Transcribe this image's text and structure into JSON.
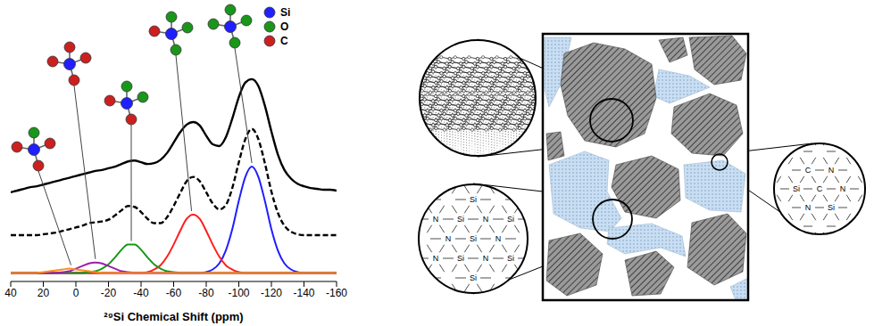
{
  "chart_data": {
    "type": "line",
    "x_label": "²⁹Si Chemical Shift (ppm)",
    "x": [
      40,
      36,
      32,
      28,
      24,
      20,
      16,
      12,
      8,
      4,
      0,
      -4,
      -8,
      -12,
      -16,
      -20,
      -24,
      -28,
      -32,
      -36,
      -40,
      -44,
      -48,
      -52,
      -56,
      -60,
      -64,
      -68,
      -72,
      -76,
      -80,
      -84,
      -88,
      -92,
      -96,
      -100,
      -104,
      -108,
      -112,
      -116,
      -120,
      -124,
      -128,
      -132,
      -136,
      -140,
      -144,
      -148,
      -152,
      -156,
      -160
    ],
    "xlim": [
      40,
      -160
    ],
    "xticks": [
      40,
      20,
      0,
      -20,
      -40,
      -60,
      -80,
      -100,
      -120,
      -140,
      -160
    ],
    "ylim": [
      -0.1,
      3.1
    ],
    "tick_labels": "x",
    "series": [
      {
        "color": "#000000",
        "line_style": "solid",
        "values": [
          0.94,
          0.96,
          0.98,
          1.0,
          1.01,
          1.03,
          1.05,
          1.07,
          1.09,
          1.11,
          1.13,
          1.15,
          1.17,
          1.19,
          1.2,
          1.22,
          1.24,
          1.27,
          1.3,
          1.31,
          1.29,
          1.27,
          1.28,
          1.32,
          1.4,
          1.52,
          1.64,
          1.73,
          1.76,
          1.72,
          1.6,
          1.5,
          1.48,
          1.58,
          1.8,
          2.05,
          2.22,
          2.26,
          2.18,
          1.95,
          1.65,
          1.38,
          1.2,
          1.1,
          1.04,
          1.01,
          0.99,
          0.98,
          0.97,
          0.97,
          0.96
        ]
      },
      {
        "color": "#000000",
        "line_style": "dashed",
        "values": [
          0.44,
          0.44,
          0.44,
          0.44,
          0.44,
          0.45,
          0.46,
          0.47,
          0.49,
          0.51,
          0.53,
          0.55,
          0.58,
          0.59,
          0.6,
          0.62,
          0.67,
          0.73,
          0.78,
          0.77,
          0.71,
          0.63,
          0.58,
          0.58,
          0.65,
          0.78,
          0.93,
          1.07,
          1.12,
          1.07,
          0.94,
          0.81,
          0.74,
          0.79,
          0.99,
          1.29,
          1.56,
          1.68,
          1.56,
          1.28,
          0.95,
          0.7,
          0.55,
          0.48,
          0.45,
          0.44,
          0.44,
          0.44,
          0.44,
          0.44,
          0.44
        ]
      },
      {
        "color": "#1f1fff",
        "line_style": "solid",
        "values": [
          0,
          0,
          0,
          0,
          0,
          0,
          0,
          0,
          0,
          0,
          0,
          0,
          0,
          0,
          0,
          0,
          0,
          0,
          0,
          0,
          0,
          0,
          0,
          0,
          0,
          0,
          0,
          0,
          0,
          0,
          0.01,
          0.04,
          0.11,
          0.26,
          0.51,
          0.84,
          1.12,
          1.24,
          1.12,
          0.84,
          0.51,
          0.26,
          0.11,
          0.04,
          0.01,
          0,
          0,
          0,
          0,
          0,
          0
        ]
      },
      {
        "color": "#ff1f1f",
        "line_style": "solid",
        "values": [
          0,
          0,
          0,
          0,
          0,
          0,
          0,
          0,
          0,
          0,
          0,
          0,
          0,
          0,
          0,
          0,
          0,
          0,
          0,
          0,
          0,
          0.01,
          0.04,
          0.09,
          0.19,
          0.33,
          0.49,
          0.63,
          0.68,
          0.63,
          0.49,
          0.33,
          0.19,
          0.09,
          0.04,
          0.01,
          0,
          0,
          0,
          0,
          0,
          0,
          0,
          0,
          0,
          0,
          0,
          0,
          0,
          0,
          0
        ]
      },
      {
        "color": "#1a961a",
        "line_style": "solid",
        "values": [
          0,
          0,
          0,
          0,
          0,
          0,
          0,
          0,
          0,
          0,
          0,
          0,
          0.01,
          0.02,
          0.05,
          0.1,
          0.18,
          0.27,
          0.33,
          0.33,
          0.27,
          0.18,
          0.1,
          0.05,
          0.02,
          0.01,
          0,
          0,
          0,
          0,
          0,
          0,
          0,
          0,
          0,
          0,
          0,
          0,
          0,
          0,
          0,
          0,
          0,
          0,
          0,
          0,
          0,
          0,
          0,
          0,
          0
        ]
      },
      {
        "color": "#9b1fa8",
        "line_style": "solid",
        "values": [
          0,
          0,
          0,
          0,
          0,
          0,
          0,
          0,
          0.01,
          0.02,
          0.05,
          0.08,
          0.11,
          0.12,
          0.11,
          0.08,
          0.05,
          0.02,
          0.01,
          0,
          0,
          0,
          0,
          0,
          0,
          0,
          0,
          0,
          0,
          0,
          0,
          0,
          0,
          0,
          0,
          0,
          0,
          0,
          0,
          0,
          0,
          0,
          0,
          0,
          0,
          0,
          0,
          0,
          0,
          0,
          0
        ]
      },
      {
        "color": "#ff8c1a",
        "line_style": "solid",
        "values": [
          0,
          0,
          0,
          0,
          0,
          0.01,
          0.02,
          0.03,
          0.04,
          0.05,
          0.04,
          0.03,
          0.02,
          0.01,
          0,
          0,
          0,
          0,
          0,
          0,
          0,
          0,
          0,
          0,
          0,
          0,
          0,
          0,
          0,
          0,
          0,
          0,
          0,
          0,
          0,
          0,
          0,
          0,
          0,
          0,
          0,
          0,
          0,
          0,
          0,
          0,
          0,
          0,
          0,
          0,
          0
        ]
      }
    ],
    "atom_legend": [
      {
        "label": "Si",
        "color": "#1f1fff"
      },
      {
        "label": "O",
        "color": "#1a961a"
      },
      {
        "label": "C",
        "color": "#cc1f1f"
      }
    ],
    "structures": [
      {
        "center": "Si",
        "neighbors": [
          "O",
          "C",
          "C",
          "C"
        ],
        "peak": 3
      },
      {
        "center": "Si",
        "neighbors": [
          "C",
          "C",
          "C",
          "C"
        ],
        "peak": -12
      },
      {
        "center": "Si",
        "neighbors": [
          "O",
          "C",
          "O",
          "C"
        ],
        "peak": -34
      },
      {
        "center": "Si",
        "neighbors": [
          "O",
          "C",
          "O",
          "O"
        ],
        "peak": -71
      },
      {
        "center": "Si",
        "neighbors": [
          "O",
          "O",
          "O",
          "O"
        ],
        "peak": -108
      }
    ]
  },
  "diagram": {
    "network_atoms": [
      "Si",
      "N"
    ],
    "interface_atoms": [
      "C",
      "N",
      "Si"
    ]
  }
}
